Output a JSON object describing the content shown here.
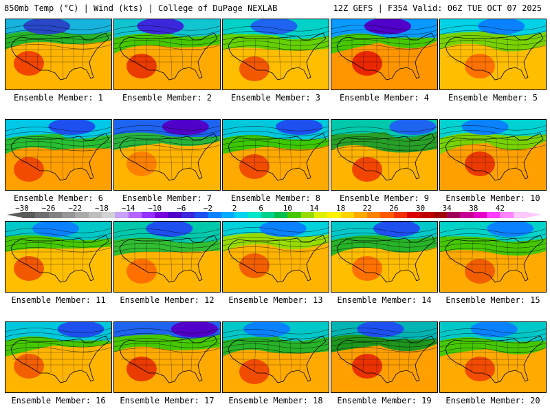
{
  "header": {
    "left": "850mb Temp (°C) | Wind (kts) | College of DuPage NEXLAB",
    "right": "12Z GEFS | F354 Valid: 06Z TUE OCT 07 2025"
  },
  "colorbar": {
    "labels": [
      "−30",
      "−26",
      "−22",
      "−18",
      "−14",
      "−10",
      "−6",
      "−2",
      "2",
      "6",
      "10",
      "14",
      "18",
      "22",
      "26",
      "30",
      "34",
      "38",
      "42"
    ],
    "colors": [
      "#5a5a5a",
      "#6e6e6e",
      "#828282",
      "#969696",
      "#aaaaaa",
      "#bebebe",
      "#d2d2d2",
      "#c8a0ff",
      "#b464ff",
      "#9632ff",
      "#7800dc",
      "#5000c8",
      "#3c28dc",
      "#1e50f0",
      "#0a82ff",
      "#00aaff",
      "#00d2f0",
      "#00e6c8",
      "#00d28c",
      "#00be50",
      "#46c800",
      "#96dc00",
      "#dcf000",
      "#fff000",
      "#ffd200",
      "#ffaa00",
      "#ff8200",
      "#ff5a00",
      "#f03200",
      "#dc0000",
      "#be0000",
      "#a00000",
      "#a0005a",
      "#c80096",
      "#e600c8",
      "#ff3cff",
      "#ff82ff",
      "#ffc8ff"
    ]
  },
  "panels": [
    {
      "label": "Ensemble Member: 1",
      "colors": {
        "cold": "#2848c8",
        "cool": "#16b4dc",
        "mild": "#28b428",
        "warm": "#ffb400",
        "hot": "#f03200"
      }
    },
    {
      "label": "Ensemble Member: 2",
      "colors": {
        "cold": "#3c28dc",
        "cool": "#10c4d0",
        "mild": "#46c800",
        "warm": "#ffaa00",
        "hot": "#e62800"
      }
    },
    {
      "label": "Ensemble Member: 3",
      "colors": {
        "cold": "#1e64f0",
        "cool": "#00d2c8",
        "mild": "#64d200",
        "warm": "#ffbe00",
        "hot": "#f04600"
      }
    },
    {
      "label": "Ensemble Member: 4",
      "colors": {
        "cold": "#5000c8",
        "cool": "#0a9aff",
        "mild": "#46c800",
        "warm": "#ff9600",
        "hot": "#e61400"
      }
    },
    {
      "label": "Ensemble Member: 5",
      "colors": {
        "cold": "#0a82ff",
        "cool": "#00d2e6",
        "mild": "#78d200",
        "warm": "#ffbe00",
        "hot": "#ff6400"
      }
    },
    {
      "label": "Ensemble Member: 6",
      "colors": {
        "cold": "#1e50f0",
        "cool": "#00c8e6",
        "mild": "#28be32",
        "warm": "#ffa000",
        "hot": "#f03c00"
      }
    },
    {
      "label": "Ensemble Member: 7",
      "colors": {
        "cold": "#5000c8",
        "cool": "#1e64f0",
        "mild": "#28b43c",
        "warm": "#ffb400",
        "hot": "#ff7800"
      }
    },
    {
      "label": "Ensemble Member: 8",
      "colors": {
        "cold": "#1e50f0",
        "cool": "#00c8dc",
        "mild": "#3cc800",
        "warm": "#ffaa00",
        "hot": "#f03c00"
      }
    },
    {
      "label": "Ensemble Member: 9",
      "colors": {
        "cold": "#1e64f0",
        "cool": "#00c8aa",
        "mild": "#28a028",
        "warm": "#ffb400",
        "hot": "#f03200"
      }
    },
    {
      "label": "Ensemble Member: 10",
      "colors": {
        "cold": "#0a82ff",
        "cool": "#00d2d2",
        "mild": "#78d200",
        "warm": "#ffa000",
        "hot": "#e62800"
      }
    },
    {
      "label": "Ensemble Member: 11",
      "colors": {
        "cold": "#0a82ff",
        "cool": "#00c8c8",
        "mild": "#46c800",
        "warm": "#ffbe00",
        "hot": "#f04600"
      }
    },
    {
      "label": "Ensemble Member: 12",
      "colors": {
        "cold": "#1e50f0",
        "cool": "#00c8aa",
        "mild": "#32be32",
        "warm": "#ffb400",
        "hot": "#ff6400"
      }
    },
    {
      "label": "Ensemble Member: 13",
      "colors": {
        "cold": "#0a82ff",
        "cool": "#00d2dc",
        "mild": "#96dc00",
        "warm": "#ffb400",
        "hot": "#f05000"
      }
    },
    {
      "label": "Ensemble Member: 14",
      "colors": {
        "cold": "#1e50f0",
        "cool": "#00c8c8",
        "mild": "#28b428",
        "warm": "#ffbe00",
        "hot": "#ff6400"
      }
    },
    {
      "label": "Ensemble Member: 15",
      "colors": {
        "cold": "#0a82ff",
        "cool": "#00d2c8",
        "mild": "#46c800",
        "warm": "#ffaa00",
        "hot": "#f05000"
      }
    },
    {
      "label": "Ensemble Member: 16",
      "colors": {
        "cold": "#1e50f0",
        "cool": "#00c8dc",
        "mild": "#46c800",
        "warm": "#ffb400",
        "hot": "#f05000"
      }
    },
    {
      "label": "Ensemble Member: 17",
      "colors": {
        "cold": "#5000c8",
        "cool": "#1e64f0",
        "mild": "#46c800",
        "warm": "#ffaa00",
        "hot": "#e62800"
      }
    },
    {
      "label": "Ensemble Member: 18",
      "colors": {
        "cold": "#0a82ff",
        "cool": "#00c8c8",
        "mild": "#28b428",
        "warm": "#ffaa00",
        "hot": "#f03c00"
      }
    },
    {
      "label": "Ensemble Member: 19",
      "colors": {
        "cold": "#1e50f0",
        "cool": "#00b4b4",
        "mild": "#1e961e",
        "warm": "#ffa000",
        "hot": "#e61e00"
      }
    },
    {
      "label": "Ensemble Member: 20",
      "colors": {
        "cold": "#0a82ff",
        "cool": "#00c8c8",
        "mild": "#46c800",
        "warm": "#ffaa00",
        "hot": "#f03c00"
      }
    }
  ]
}
